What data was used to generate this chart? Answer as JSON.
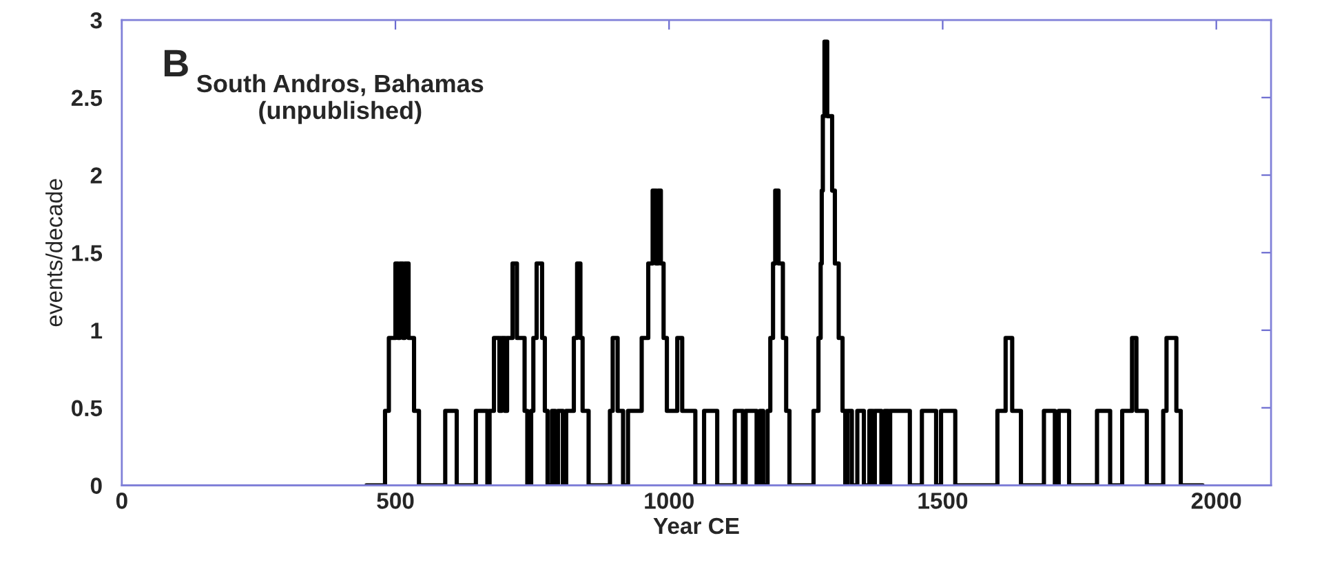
{
  "chart_data": {
    "type": "step",
    "xlabel": "Year CE",
    "ylabel": "events/decade",
    "annotations": [
      "B",
      "South Andros, Bahamas\n(unpublished)"
    ],
    "x": [
      447,
      481,
      488,
      500,
      505,
      508,
      514,
      517,
      524,
      534,
      543,
      591,
      612,
      647,
      668,
      672,
      680,
      690,
      694,
      700,
      704,
      714,
      722,
      736,
      741,
      748,
      752,
      758,
      768,
      773,
      778,
      786,
      792,
      797,
      806,
      812,
      826,
      832,
      838,
      842,
      853,
      892,
      897,
      906,
      916,
      925,
      950,
      962,
      970,
      976,
      980,
      985,
      990,
      996,
      1015,
      1024,
      1048,
      1064,
      1088,
      1120,
      1135,
      1140,
      1160,
      1166,
      1172,
      1180,
      1185,
      1190,
      1194,
      1200,
      1208,
      1214,
      1220,
      1264,
      1273,
      1277,
      1279,
      1281,
      1284,
      1289,
      1298,
      1303,
      1310,
      1317,
      1322,
      1326,
      1334,
      1344,
      1356,
      1366,
      1372,
      1376,
      1388,
      1394,
      1400,
      1404,
      1440,
      1462,
      1488,
      1497,
      1523,
      1600,
      1615,
      1627,
      1643,
      1685,
      1705,
      1712,
      1731,
      1782,
      1806,
      1828,
      1846,
      1854,
      1873,
      1903,
      1909,
      1927,
      1935,
      1975
    ],
    "series": [
      {
        "color": "#000000",
        "values": [
          0,
          0.48,
          0.95,
          1.43,
          0.95,
          1.43,
          0.95,
          1.43,
          0.95,
          0.48,
          0,
          0.48,
          0,
          0.48,
          0,
          0.48,
          0.95,
          0.48,
          0.95,
          0.48,
          0.95,
          1.43,
          0.95,
          0.48,
          0,
          0.48,
          0.95,
          1.43,
          0.95,
          0.48,
          0,
          0.48,
          0,
          0.48,
          0,
          0.48,
          0.95,
          1.43,
          0.95,
          0.48,
          0,
          0.48,
          0.95,
          0.48,
          0,
          0.48,
          0.95,
          1.43,
          1.9,
          1.43,
          1.9,
          1.43,
          0.95,
          0.48,
          0.95,
          0.48,
          0,
          0.48,
          0,
          0.48,
          0,
          0.48,
          0,
          0.48,
          0,
          0.48,
          0.95,
          1.43,
          1.9,
          1.43,
          0.95,
          0.48,
          0,
          0.48,
          0.95,
          1.43,
          1.9,
          2.38,
          2.86,
          2.38,
          1.9,
          1.43,
          0.95,
          0.48,
          0,
          0.48,
          0,
          0.48,
          0,
          0.48,
          0,
          0.48,
          0,
          0.48,
          0,
          0.48,
          0,
          0.48,
          0,
          0.48,
          0,
          0.48,
          0.95,
          0.48,
          0,
          0.48,
          0,
          0.48,
          0,
          0.48,
          0,
          0.48,
          0.95,
          0.48,
          0,
          0.48,
          0.95,
          0.48,
          0,
          0
        ]
      }
    ],
    "xlim": [
      0,
      2100
    ],
    "ylim": [
      0,
      3
    ],
    "xticks": [
      0,
      500,
      1000,
      1500,
      2000
    ],
    "yticks": [
      0,
      0.5,
      1,
      1.5,
      2,
      2.5,
      3
    ],
    "grid": false,
    "legend": false,
    "marker": "none",
    "line_style": "solid"
  }
}
